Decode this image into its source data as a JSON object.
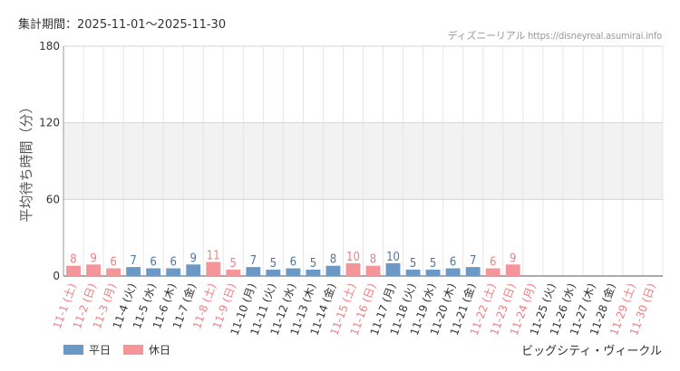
{
  "header": {
    "period_label": "集計期間：2025-11-01〜2025-11-30",
    "source": "ディズニーリアル https://disneyreal.asumirai.info"
  },
  "footer": {
    "attraction": "ビッグシティ・ヴィークル"
  },
  "colors": {
    "weekday": "#6b98c4",
    "holiday": "#f4959a",
    "holiday_text": "#f07c82",
    "weekday_text": "#4a76a8",
    "band": "#f2f2f2",
    "grid": "#e6e6e6"
  },
  "chart_data": {
    "type": "bar",
    "ylabel": "平均待ち時間（分）",
    "ylim": [
      0,
      180
    ],
    "yticks": [
      0,
      60,
      120,
      180
    ],
    "legend": [
      {
        "name": "平日",
        "color": "#6b98c4"
      },
      {
        "name": "休日",
        "color": "#f4959a"
      }
    ],
    "legend_position": "bottom-left",
    "categories": [
      "11-1 (土)",
      "11-2 (日)",
      "11-3 (月)",
      "11-4 (火)",
      "11-5 (水)",
      "11-6 (木)",
      "11-7 (金)",
      "11-8 (土)",
      "11-9 (日)",
      "11-10 (月)",
      "11-11 (火)",
      "11-12 (水)",
      "11-13 (木)",
      "11-14 (金)",
      "11-15 (土)",
      "11-16 (日)",
      "11-17 (月)",
      "11-18 (火)",
      "11-19 (水)",
      "11-20 (木)",
      "11-21 (金)",
      "11-22 (土)",
      "11-23 (日)",
      "11-24 (月)",
      "11-25 (火)",
      "11-26 (水)",
      "11-27 (木)",
      "11-28 (金)",
      "11-29 (土)",
      "11-30 (日)"
    ],
    "values": [
      8,
      9,
      6,
      7,
      6,
      6,
      9,
      11,
      5,
      7,
      5,
      6,
      5,
      8,
      10,
      8,
      10,
      5,
      5,
      6,
      7,
      6,
      9,
      null,
      null,
      null,
      null,
      null,
      null,
      null
    ],
    "day_type": [
      "holiday",
      "holiday",
      "holiday",
      "weekday",
      "weekday",
      "weekday",
      "weekday",
      "holiday",
      "holiday",
      "weekday",
      "weekday",
      "weekday",
      "weekday",
      "weekday",
      "holiday",
      "holiday",
      "weekday",
      "weekday",
      "weekday",
      "weekday",
      "weekday",
      "holiday",
      "holiday",
      "holiday",
      "weekday",
      "weekday",
      "weekday",
      "weekday",
      "holiday",
      "holiday"
    ]
  }
}
